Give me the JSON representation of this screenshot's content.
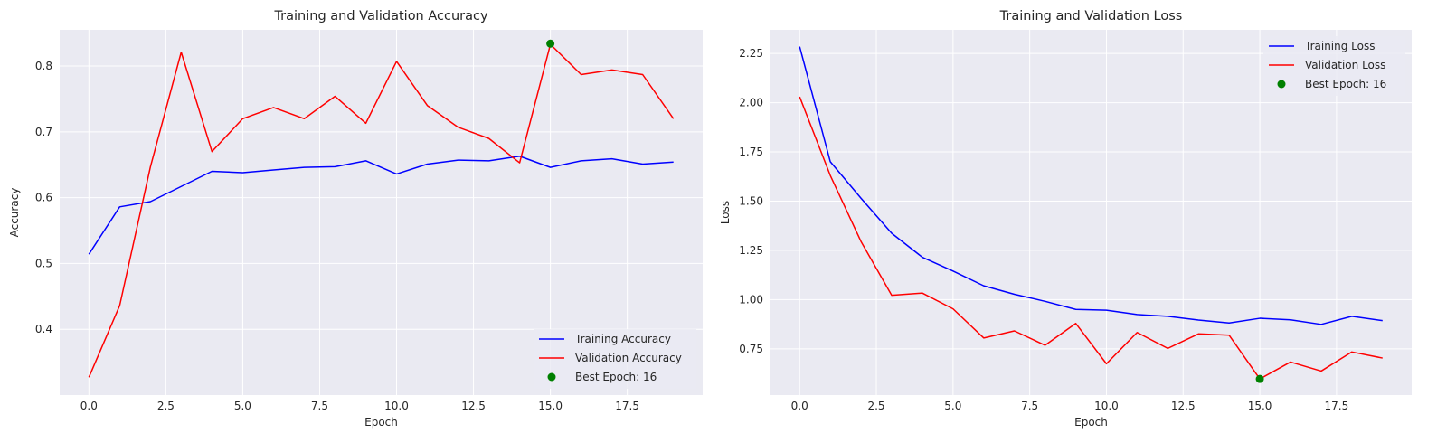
{
  "chart_data": [
    {
      "type": "line",
      "title": "Training and Validation Accuracy",
      "xlabel": "Epoch",
      "ylabel": "Accuracy",
      "xlim": [
        -0.95,
        19.95
      ],
      "ylim": [
        0.3,
        0.855
      ],
      "xticks": [
        0.0,
        2.5,
        5.0,
        7.5,
        10.0,
        12.5,
        15.0,
        17.5
      ],
      "xtick_labels": [
        "0.0",
        "2.5",
        "5.0",
        "7.5",
        "10.0",
        "12.5",
        "15.0",
        "17.5"
      ],
      "yticks": [
        0.4,
        0.5,
        0.6,
        0.7,
        0.8
      ],
      "ytick_labels": [
        "0.4",
        "0.5",
        "0.6",
        "0.7",
        "0.8"
      ],
      "grid": true,
      "legend_position": "lower-right",
      "x": [
        0,
        1,
        2,
        3,
        4,
        5,
        6,
        7,
        8,
        9,
        10,
        11,
        12,
        13,
        14,
        15,
        16,
        17,
        18,
        19
      ],
      "series": [
        {
          "name": "Training Accuracy",
          "color": "#0000ff",
          "values": [
            0.514,
            0.586,
            0.594,
            0.617,
            0.64,
            0.638,
            0.642,
            0.646,
            0.647,
            0.656,
            0.636,
            0.651,
            0.657,
            0.656,
            0.663,
            0.646,
            0.656,
            0.659,
            0.651,
            0.654
          ]
        },
        {
          "name": "Validation Accuracy",
          "color": "#ff0000",
          "values": [
            0.327,
            0.436,
            0.647,
            0.821,
            0.67,
            0.72,
            0.737,
            0.72,
            0.754,
            0.713,
            0.807,
            0.74,
            0.707,
            0.69,
            0.653,
            0.833,
            0.787,
            0.794,
            0.787,
            0.72
          ]
        }
      ],
      "marker": {
        "name": "Best Epoch: 16",
        "color": "#008000",
        "x": 15,
        "y": 0.834
      }
    },
    {
      "type": "line",
      "title": "Training and Validation Loss",
      "xlabel": "Epoch",
      "ylabel": "Loss",
      "xlim": [
        -0.95,
        19.95
      ],
      "ylim": [
        0.515,
        2.37
      ],
      "xticks": [
        0.0,
        2.5,
        5.0,
        7.5,
        10.0,
        12.5,
        15.0,
        17.5
      ],
      "xtick_labels": [
        "0.0",
        "2.5",
        "5.0",
        "7.5",
        "10.0",
        "12.5",
        "15.0",
        "17.5"
      ],
      "yticks": [
        0.75,
        1.0,
        1.25,
        1.5,
        1.75,
        2.0,
        2.25
      ],
      "ytick_labels": [
        "0.75",
        "1.00",
        "1.25",
        "1.50",
        "1.75",
        "2.00",
        "2.25"
      ],
      "grid": true,
      "legend_position": "upper-right",
      "x": [
        0,
        1,
        2,
        3,
        4,
        5,
        6,
        7,
        8,
        9,
        10,
        11,
        12,
        13,
        14,
        15,
        16,
        17,
        18,
        19
      ],
      "series": [
        {
          "name": "Training Loss",
          "color": "#0000ff",
          "values": [
            2.285,
            1.7,
            1.515,
            1.337,
            1.215,
            1.145,
            1.07,
            1.027,
            0.991,
            0.95,
            0.946,
            0.924,
            0.915,
            0.896,
            0.881,
            0.905,
            0.897,
            0.874,
            0.915,
            0.893
          ]
        },
        {
          "name": "Validation Loss",
          "color": "#ff0000",
          "values": [
            2.03,
            1.63,
            1.295,
            1.022,
            1.033,
            0.953,
            0.805,
            0.841,
            0.768,
            0.879,
            0.674,
            0.833,
            0.752,
            0.826,
            0.819,
            0.597,
            0.683,
            0.637,
            0.734,
            0.703
          ]
        }
      ],
      "marker": {
        "name": "Best Epoch: 16",
        "color": "#008000",
        "x": 15,
        "y": 0.597
      }
    }
  ]
}
